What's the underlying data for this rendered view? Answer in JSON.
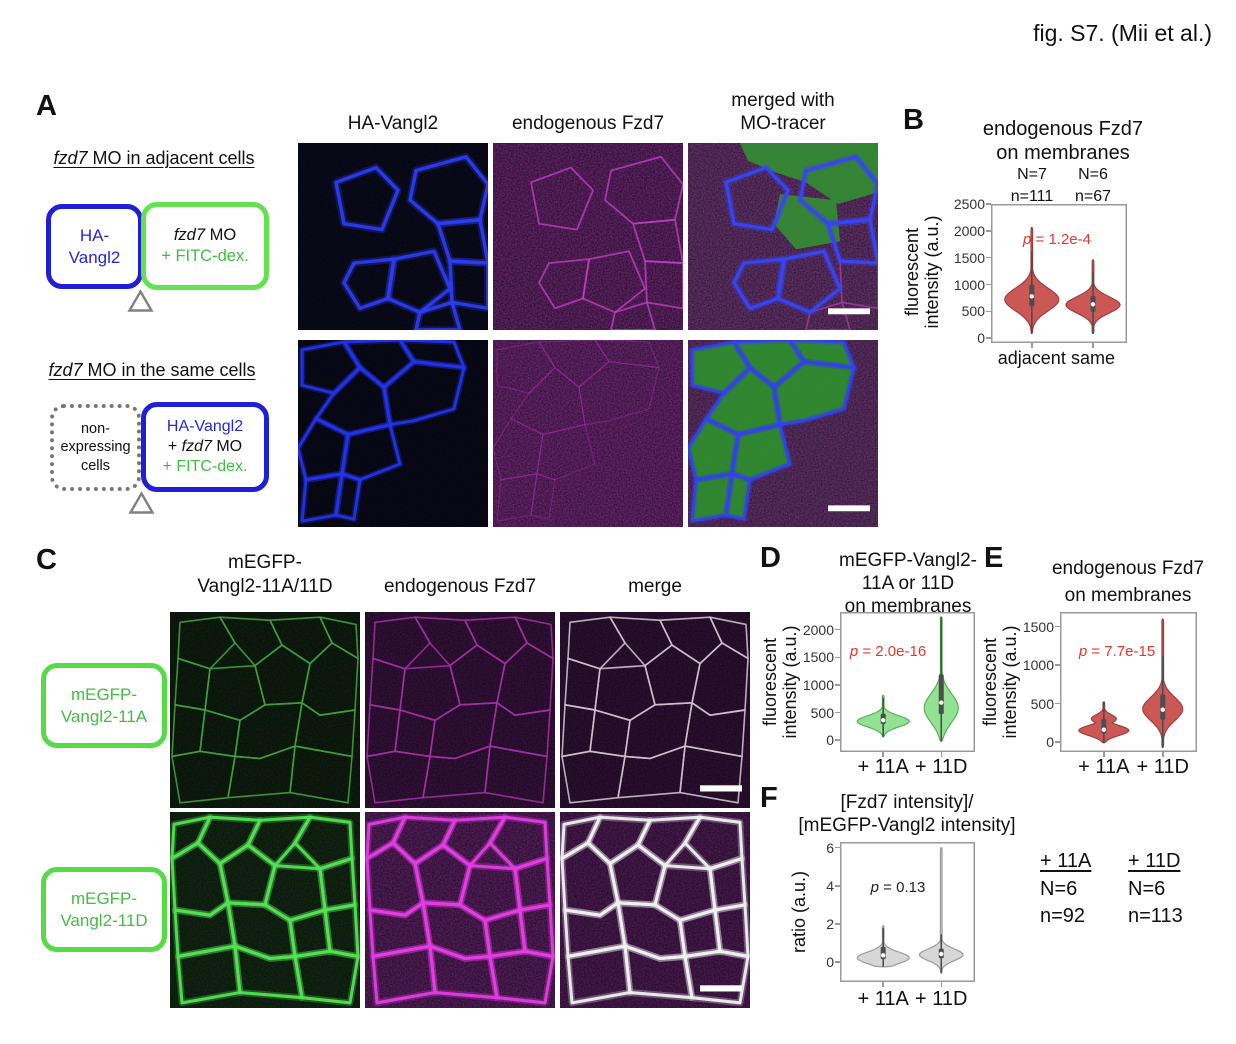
{
  "header": {
    "caption": "fig. S7. (Mii et al.)"
  },
  "panel_a": {
    "label": "A",
    "schematic_adjacent": {
      "heading_gene": "fzd7",
      "heading_rest": " MO in adjacent cells",
      "box1": {
        "lines": [
          "HA-",
          "Vangl2"
        ]
      },
      "box2": {
        "gene": "fzd7",
        "gene_rest": " MO",
        "line2": "+ FITC-dex."
      }
    },
    "schematic_same": {
      "heading_gene": "fzd7",
      "heading_rest": " MO in the same cells",
      "box1": {
        "lines": [
          "non-",
          "expressing",
          "cells"
        ]
      },
      "box2": {
        "line1": "HA-Vangl2",
        "line2_pre": "+ ",
        "line2_gene": "fzd7",
        "line2_post": " MO",
        "line3": "+ FITC-dex."
      }
    },
    "col_headers": [
      "HA-Vangl2",
      "endogenous Fzd7",
      "merged with",
      "MO-tracer"
    ]
  },
  "panel_b": {
    "label": "B",
    "title": [
      "endogenous Fzd7",
      "on membranes"
    ],
    "groups": [
      [
        "N=7",
        "n=111"
      ],
      [
        "N=6",
        "n=67"
      ]
    ]
  },
  "panel_c": {
    "label": "C",
    "col_headers": [
      "mEGFP-",
      "Vangl2-11A/11D",
      "endogenous Fzd7",
      "merge"
    ],
    "row_labels": [
      [
        "mEGFP-",
        "Vangl2-11A"
      ],
      [
        "mEGFP-",
        "Vangl2-11D"
      ]
    ]
  },
  "panel_d": {
    "label": "D",
    "title": [
      "mEGFP-Vangl2-",
      "11A or 11D",
      "on membranes"
    ]
  },
  "panel_e": {
    "label": "E",
    "title": [
      "endogenous Fzd7",
      "on membranes"
    ]
  },
  "panel_f": {
    "label": "F",
    "title": [
      "[Fzd7 intensity]/",
      "[mEGFP-Vangl2 intensity]"
    ],
    "stats": [
      {
        "head": "+ 11A",
        "N": "N=6",
        "n": "n=92"
      },
      {
        "head": "+ 11D",
        "N": "N=6",
        "n": "n=113"
      }
    ]
  },
  "chart_data": [
    {
      "id": "B",
      "type": "violin",
      "title": "endogenous Fzd7 on membranes",
      "ylabel": "fluorescent intensity (a.u.)",
      "ylabel_lines": [
        "fluorescent",
        "intensity (a.u.)"
      ],
      "categories": [
        "adjacent",
        "same"
      ],
      "group_sizes": [
        {
          "N": 7,
          "n": 111
        },
        {
          "N": 6,
          "n": 67
        }
      ],
      "p_value": "p = 1.2e-4",
      "p_color": "#e8362b",
      "yticks": [
        0,
        500,
        1000,
        1500,
        2000,
        2500
      ],
      "ylim": [
        -90,
        2500
      ],
      "fill": "#c9534e",
      "stroke": "#9e3f3c",
      "violins": [
        {
          "label": "adjacent",
          "min": 90,
          "max": 2060,
          "q1": 590,
          "median": 780,
          "q3": 1000,
          "mode": 720,
          "bw": 210,
          "hw": 27
        },
        {
          "label": "same",
          "min": 90,
          "max": 1460,
          "q1": 490,
          "median": 630,
          "q3": 790,
          "mode": 620,
          "bw": 150,
          "hw": 27
        }
      ]
    },
    {
      "id": "D",
      "type": "violin",
      "title": "mEGFP-Vangl2-11A or 11D on membranes",
      "ylabel": "fluorescent intensity (a.u.)",
      "ylabel_lines": [
        "fluorescent",
        "intensity (a.u.)"
      ],
      "categories": [
        "+ 11A",
        "+ 11D"
      ],
      "p_value": "p = 2.0e-16",
      "p_color": "#e8362b",
      "yticks": [
        0,
        500,
        1000,
        1500,
        2000
      ],
      "ylim": [
        -215,
        2320
      ],
      "fill": "#8fe08f",
      "stroke": "#56b356",
      "violins": [
        {
          "label": "+ 11A",
          "min": 60,
          "max": 810,
          "q1": 290,
          "median": 360,
          "q3": 480,
          "mode": 340,
          "bw": 100,
          "hw": 26
        },
        {
          "label": "+ 11D",
          "min": -20,
          "max": 2230,
          "q1": 470,
          "median": 680,
          "q3": 1190,
          "mode": 580,
          "bw": 260,
          "hw": 17
        }
      ]
    },
    {
      "id": "E",
      "type": "violin",
      "title": "endogenous Fzd7 on membranes",
      "ylabel": "fluorescent intensity (a.u.)",
      "ylabel_lines": [
        "fluorescent",
        "intensity (a.u.)"
      ],
      "categories": [
        "+ 11A",
        "+ 11D"
      ],
      "p_value": "p = 7.7e-15",
      "p_color": "#e8362b",
      "yticks": [
        0,
        500,
        1000,
        1500
      ],
      "ylim": [
        -130,
        1690
      ],
      "fill": "#c9534e",
      "stroke": "#9e3f3c",
      "violins": [
        {
          "label": "+ 11A",
          "min": -10,
          "max": 520,
          "q1": 110,
          "median": 160,
          "q3": 300,
          "mode": 150,
          "bw": 65,
          "mode2": 300,
          "bw2": 55,
          "amp2": 0.5,
          "hw": 25
        },
        {
          "label": "+ 11D",
          "min": -70,
          "max": 1600,
          "q1": 290,
          "median": 420,
          "q3": 620,
          "mode": 430,
          "bw": 150,
          "hw": 20
        }
      ]
    },
    {
      "id": "F",
      "type": "violin",
      "title": "[Fzd7 intensity]/[mEGFP-Vangl2 intensity]",
      "ylabel": "ratio (a.u.)",
      "ylabel_lines": [
        "ratio (a.u.)"
      ],
      "categories": [
        "+ 11A",
        "+ 11D"
      ],
      "group_sizes": [
        {
          "N": 6,
          "n": 92
        },
        {
          "N": 6,
          "n": 113
        }
      ],
      "p_value": "p = 0.13",
      "p_color": "#222222",
      "yticks": [
        0,
        2,
        4,
        6
      ],
      "ylim": [
        -1.05,
        6.3
      ],
      "fill": "#d6d6d6",
      "stroke": "#9a9a9a",
      "violins": [
        {
          "label": "+ 11A",
          "min": -0.25,
          "max": 1.9,
          "q1": 0.15,
          "median": 0.35,
          "q3": 0.8,
          "mode": 0.22,
          "bw": 0.3,
          "hw": 26
        },
        {
          "label": "+ 11D",
          "min": -0.6,
          "max": 6.0,
          "q1": 0.2,
          "median": 0.42,
          "q3": 0.7,
          "mode": 0.38,
          "bw": 0.3,
          "hw": 22
        }
      ]
    }
  ],
  "colors": {
    "blue_accent": "#2222dd",
    "green_border": "#55dc45",
    "green_text": "#3fbe3f",
    "violin_red": "#c9534e",
    "violin_green": "#8fe08f",
    "violin_gray": "#d6d6d6",
    "p_red": "#e8362b",
    "magenta_channel": "#cc33cc",
    "scale_bar": "#ffffff"
  }
}
